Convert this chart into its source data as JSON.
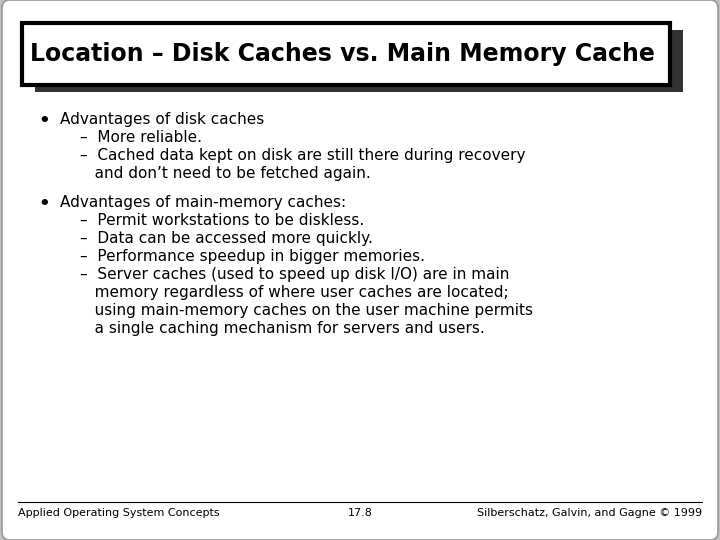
{
  "title": "Location – Disk Caches vs. Main Memory Cache",
  "bg_color": "#c0c0c0",
  "slide_bg": "#ffffff",
  "title_box_bg": "#ffffff",
  "title_box_edge": "#000000",
  "title_fontsize": 17,
  "body_fontsize": 11,
  "footer_fontsize": 8,
  "bullet1": "Advantages of disk caches",
  "sub1_1": "–  More reliable.",
  "sub1_2_line1": "–  Cached data kept on disk are still there during recovery",
  "sub1_2_line2": "   and don’t need to be fetched again.",
  "bullet2": "Advantages of main-memory caches:",
  "sub2_1": "–  Permit workstations to be diskless.",
  "sub2_2": "–  Data can be accessed more quickly.",
  "sub2_3": "–  Performance speedup in bigger memories.",
  "sub2_4_line1": "–  Server caches (used to speed up disk I/O) are in main",
  "sub2_4_line2": "   memory regardless of where user caches are located;",
  "sub2_4_line3": "   using main-memory caches on the user machine permits",
  "sub2_4_line4": "   a single caching mechanism for servers and users.",
  "footer_left": "Applied Operating System Concepts",
  "footer_center": "17.8",
  "footer_right": "Silberschatz, Galvin, and Gagne © 1999"
}
